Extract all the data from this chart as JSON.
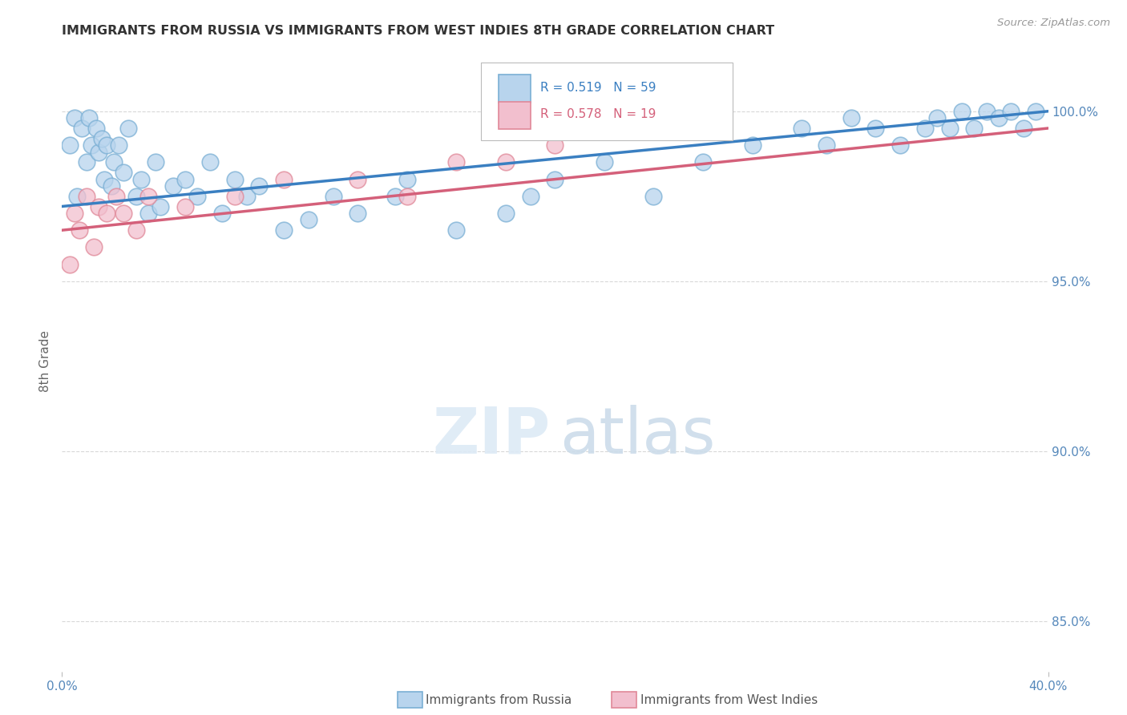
{
  "title": "IMMIGRANTS FROM RUSSIA VS IMMIGRANTS FROM WEST INDIES 8TH GRADE CORRELATION CHART",
  "source": "Source: ZipAtlas.com",
  "ylabel": "8th Grade",
  "legend_russia": "Immigrants from Russia",
  "legend_westindies": "Immigrants from West Indies",
  "r_russia": 0.519,
  "n_russia": 59,
  "r_westindies": 0.578,
  "n_westindies": 19,
  "blue_color": "#b8d4ed",
  "blue_edge": "#7aafd4",
  "blue_line": "#3a7fc1",
  "pink_color": "#f2bfce",
  "pink_edge": "#e08898",
  "pink_line": "#d4607a",
  "background_color": "#ffffff",
  "grid_color": "#c8c8c8",
  "title_color": "#333333",
  "axis_label_color": "#5588bb",
  "russia_x": [
    0.3,
    0.5,
    0.6,
    0.8,
    1.0,
    1.1,
    1.2,
    1.4,
    1.5,
    1.6,
    1.7,
    1.8,
    2.0,
    2.1,
    2.3,
    2.5,
    2.7,
    3.0,
    3.2,
    3.5,
    3.8,
    4.0,
    4.5,
    5.0,
    5.5,
    6.0,
    6.5,
    7.0,
    7.5,
    8.0,
    9.0,
    10.0,
    11.0,
    12.0,
    13.5,
    14.0,
    16.0,
    18.0,
    19.0,
    20.0,
    22.0,
    24.0,
    26.0,
    28.0,
    30.0,
    31.0,
    32.0,
    33.0,
    34.0,
    35.0,
    35.5,
    36.0,
    36.5,
    37.0,
    37.5,
    38.0,
    38.5,
    39.0,
    39.5
  ],
  "russia_y": [
    99.0,
    99.8,
    97.5,
    99.5,
    98.5,
    99.8,
    99.0,
    99.5,
    98.8,
    99.2,
    98.0,
    99.0,
    97.8,
    98.5,
    99.0,
    98.2,
    99.5,
    97.5,
    98.0,
    97.0,
    98.5,
    97.2,
    97.8,
    98.0,
    97.5,
    98.5,
    97.0,
    98.0,
    97.5,
    97.8,
    96.5,
    96.8,
    97.5,
    97.0,
    97.5,
    98.0,
    96.5,
    97.0,
    97.5,
    98.0,
    98.5,
    97.5,
    98.5,
    99.0,
    99.5,
    99.0,
    99.8,
    99.5,
    99.0,
    99.5,
    99.8,
    99.5,
    100.0,
    99.5,
    100.0,
    99.8,
    100.0,
    99.5,
    100.0
  ],
  "westindies_x": [
    0.3,
    0.5,
    0.7,
    1.0,
    1.3,
    1.5,
    1.8,
    2.2,
    2.5,
    3.0,
    3.5,
    5.0,
    7.0,
    9.0,
    12.0,
    14.0,
    16.0,
    18.0,
    20.0
  ],
  "westindies_y": [
    95.5,
    97.0,
    96.5,
    97.5,
    96.0,
    97.2,
    97.0,
    97.5,
    97.0,
    96.5,
    97.5,
    97.2,
    97.5,
    98.0,
    98.0,
    97.5,
    98.5,
    98.5,
    99.0
  ],
  "y_ticks": [
    85.0,
    90.0,
    95.0,
    100.0
  ],
  "y_tick_labels": [
    "85.0%",
    "90.0%",
    "95.0%",
    "100.0%"
  ],
  "xlim": [
    0,
    40
  ],
  "ylim": [
    83.5,
    101.8
  ]
}
